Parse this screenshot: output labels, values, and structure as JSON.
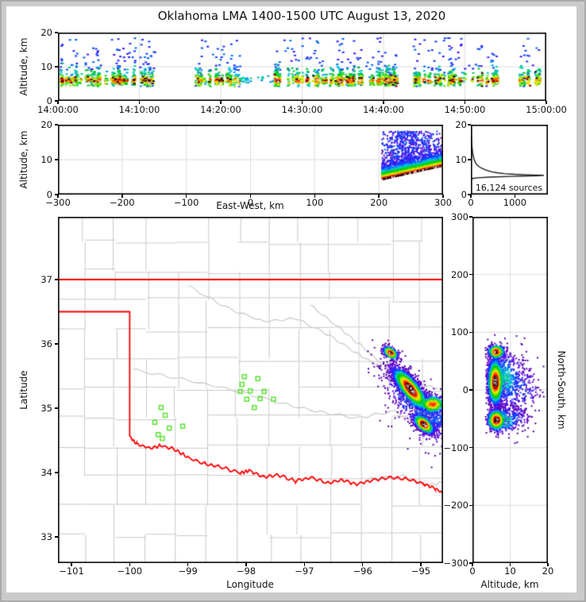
{
  "title": "Oklahoma LMA 1400-1500 UTC August 13, 2020",
  "colors": {
    "state_border": "#ff0000",
    "county_line": "#c9c9c9",
    "river_line": "#c3c3c3",
    "station_marker": "#5ae332",
    "gridline": "#dcdcdc",
    "histogram_line": "#1a1a1a",
    "spine": "#000000"
  },
  "panels": {
    "time_height": {
      "ylabel": "Altitude, km",
      "yticks": [
        0,
        10,
        20
      ],
      "xtick_seconds": [
        0,
        600,
        1200,
        1800,
        2400,
        3000,
        3600
      ],
      "xtick_labels": [
        "14:00:00",
        "14:10:00",
        "14:20:00",
        "14:30:00",
        "14:40:00",
        "14:50:00",
        "15:00:00"
      ]
    },
    "ew_height": {
      "xlabel": "East-West, km",
      "ylabel": "Altitude, km",
      "yticks": [
        0,
        10,
        20
      ],
      "xticks": [
        -300,
        -200,
        -100,
        0,
        100,
        200,
        300
      ],
      "xtick_labels": [
        "−300",
        "−200",
        "−100",
        "0",
        "100",
        "200",
        "300"
      ]
    },
    "histogram": {
      "annotation": "16,124 sources",
      "xticks": [
        0,
        1000
      ],
      "xtick_labels": [
        "0",
        "1000"
      ],
      "yticks": [
        0,
        10,
        20
      ],
      "xmax": 1750
    },
    "map": {
      "xlabel": "Longitude",
      "ylabel": "Latitude",
      "lon_ticks": [
        -101,
        -100,
        -99,
        -98,
        -97,
        -96,
        -95
      ],
      "lon_tick_labels": [
        "−101",
        "−100",
        "−99",
        "−98",
        "−97",
        "−96",
        "−95"
      ],
      "lat_ticks": [
        37,
        36,
        35,
        34,
        33
      ],
      "lat_tick_labels": [
        "37",
        "36",
        "35",
        "34",
        "33"
      ],
      "lon_range": [
        -101.232,
        -94.618
      ],
      "lat_range": [
        32.593,
        37.975
      ],
      "stations": [
        [
          -99.46,
          35.01
        ],
        [
          -99.39,
          34.89
        ],
        [
          -99.57,
          34.78
        ],
        [
          -99.32,
          34.69
        ],
        [
          -99.09,
          34.72
        ],
        [
          -99.51,
          34.59
        ],
        [
          -99.44,
          34.53
        ],
        [
          -98.03,
          35.49
        ],
        [
          -97.8,
          35.46
        ],
        [
          -98.07,
          35.37
        ],
        [
          -98.1,
          35.26
        ],
        [
          -97.93,
          35.27
        ],
        [
          -97.69,
          35.26
        ],
        [
          -97.99,
          35.14
        ],
        [
          -97.76,
          35.15
        ],
        [
          -97.53,
          35.14
        ],
        [
          -97.86,
          35.01
        ]
      ],
      "borders": {
        "kansas_lat": 37.0,
        "panhandle_lat": 36.5,
        "panhandle_lon": -100.0,
        "panhandle_lat_bottom": 34.56,
        "red_river": [
          [
            -100.0,
            34.56
          ],
          [
            -99.88,
            34.44
          ],
          [
            -99.65,
            34.38
          ],
          [
            -99.45,
            34.42
          ],
          [
            -99.2,
            34.35
          ],
          [
            -99.0,
            34.23
          ],
          [
            -98.7,
            34.13
          ],
          [
            -98.45,
            34.09
          ],
          [
            -98.1,
            33.99
          ],
          [
            -97.95,
            34.03
          ],
          [
            -97.7,
            33.93
          ],
          [
            -97.45,
            33.96
          ],
          [
            -97.15,
            33.87
          ],
          [
            -96.9,
            33.92
          ],
          [
            -96.6,
            33.84
          ],
          [
            -96.35,
            33.88
          ],
          [
            -96.1,
            33.82
          ],
          [
            -95.85,
            33.88
          ],
          [
            -95.55,
            33.92
          ],
          [
            -95.25,
            33.9
          ],
          [
            -94.95,
            33.82
          ],
          [
            -94.75,
            33.75
          ],
          [
            -94.6,
            33.67
          ]
        ]
      },
      "rivers": [
        [
          [
            -99.0,
            36.9
          ],
          [
            -98.3,
            36.55
          ],
          [
            -97.7,
            36.35
          ],
          [
            -97.15,
            36.4
          ],
          [
            -96.6,
            36.15
          ],
          [
            -96.1,
            35.85
          ],
          [
            -95.7,
            35.65
          ]
        ],
        [
          [
            -99.95,
            35.6
          ],
          [
            -99.1,
            35.45
          ],
          [
            -98.3,
            35.3
          ],
          [
            -97.5,
            35.1
          ],
          [
            -96.8,
            34.95
          ],
          [
            -96.1,
            34.85
          ],
          [
            -95.45,
            34.95
          ],
          [
            -94.9,
            34.65
          ]
        ],
        [
          [
            -96.9,
            36.6
          ],
          [
            -96.4,
            36.25
          ],
          [
            -96.0,
            35.95
          ],
          [
            -95.55,
            35.6
          ],
          [
            -95.05,
            35.38
          ],
          [
            -94.7,
            35.3
          ]
        ],
        [
          [
            -95.9,
            33.9
          ],
          [
            -95.3,
            33.95
          ],
          [
            -94.9,
            33.8
          ],
          [
            -94.62,
            33.85
          ]
        ]
      ],
      "county_grid": {
        "lon_start": -101.3,
        "lon_step": 0.527,
        "lat_start": 32.58,
        "lat_step": 0.455,
        "cols": 14,
        "rows": 13
      }
    },
    "ns_height": {
      "xlabel": "Altitude, km",
      "ylabel_right": "North-South, km",
      "xticks": [
        0,
        10,
        20
      ],
      "yticks": [
        300,
        200,
        100,
        0,
        -100,
        -200,
        -300
      ],
      "ytick_labels": [
        "300",
        "200",
        "100",
        "0",
        "−100",
        "−200",
        "−300"
      ]
    }
  },
  "chart_data": [
    {
      "panel": "time_height",
      "type": "scatter-density",
      "x_axis": "UTC time 14:00:00-15:00:00 (seconds)",
      "y_axis": "Altitude 0-20 km",
      "band_center_km": 6.0,
      "band_sigma_km": 0.85,
      "max_alt_km": 18.5,
      "active_windows_sec": [
        [
          0,
          765,
          1.0
        ],
        [
          1020,
          1345,
          0.9
        ],
        [
          1345,
          1590,
          0.15
        ],
        [
          1590,
          2505,
          1.0
        ],
        [
          2630,
          3000,
          0.85
        ],
        [
          3030,
          3240,
          0.8
        ],
        [
          3390,
          3580,
          0.75
        ]
      ]
    },
    {
      "panel": "ew_height",
      "type": "scatter-density",
      "x_axis": "East-West -300..300 km",
      "y_axis": "Altitude 0-20 km",
      "triangle": {
        "x0": 205,
        "x1": 300,
        "alt0": 4.3,
        "alt1": 8.2,
        "top": 18.2,
        "decay": 2.1,
        "n_core": 2600,
        "n_diffuse": 750
      }
    },
    {
      "panel": "histogram",
      "type": "line",
      "total_sources": "16,124",
      "profile_alt_count": [
        [
          20,
          4
        ],
        [
          18,
          8
        ],
        [
          16,
          13
        ],
        [
          14,
          22
        ],
        [
          12,
          40
        ],
        [
          11,
          55
        ],
        [
          10,
          75
        ],
        [
          9,
          110
        ],
        [
          8.5,
          140
        ],
        [
          8,
          185
        ],
        [
          7.5,
          250
        ],
        [
          7,
          340
        ],
        [
          6.5,
          480
        ],
        [
          6.2,
          620
        ],
        [
          6,
          760
        ],
        [
          5.8,
          1000
        ],
        [
          5.6,
          1400
        ],
        [
          5.5,
          1660
        ],
        [
          5.4,
          1500
        ],
        [
          5.2,
          900
        ],
        [
          5,
          420
        ],
        [
          4.8,
          150
        ],
        [
          4.6,
          40
        ],
        [
          4.4,
          5
        ],
        [
          4.3,
          0
        ]
      ]
    },
    {
      "panel": "map",
      "type": "scatter-density",
      "clusters": [
        {
          "name": "north-small-cell",
          "lon": -95.52,
          "lat": 35.86,
          "ax": 0.85,
          "ay": -0.53,
          "smaj": 0.07,
          "smin": 0.04,
          "n": 320,
          "tmax": 0.95
        },
        {
          "name": "main-cell",
          "lon": -95.18,
          "lat": 35.3,
          "ax": 0.67,
          "ay": -0.74,
          "smaj": 0.21,
          "smin": 0.07,
          "n": 2600,
          "tmax": 1.0
        },
        {
          "name": "east-lobe",
          "lon": -94.8,
          "lat": 35.06,
          "ax": 1,
          "ay": 0,
          "smaj": 0.12,
          "smin": 0.07,
          "n": 420,
          "tmax": 0.85
        },
        {
          "name": "south-cell",
          "lon": -94.95,
          "lat": 34.75,
          "ax": 0.8,
          "ay": -0.6,
          "smaj": 0.1,
          "smin": 0.05,
          "n": 900,
          "tmax": 1.0
        },
        {
          "name": "diffuse-halo",
          "lon": -95.05,
          "lat": 35.05,
          "ax": 0.67,
          "ay": -0.74,
          "smaj": 0.45,
          "smin": 0.18,
          "n": 480,
          "tmax": 0.3
        },
        {
          "name": "east-fringe",
          "lon": -94.7,
          "lat": 34.85,
          "ax": 1,
          "ay": 0,
          "smaj": 0.18,
          "smin": 0.12,
          "n": 160,
          "tmax": 0.25
        }
      ]
    },
    {
      "panel": "ns_height",
      "type": "scatter-density",
      "clusters": [
        {
          "alt": 6.1,
          "ns": 14,
          "sa": 1.0,
          "sn": 20,
          "n": 1900,
          "tmax": 1.0
        },
        {
          "alt": 6.3,
          "ns": 66,
          "sa": 1.1,
          "sn": 6,
          "n": 360,
          "tmax": 0.95
        },
        {
          "alt": 6.4,
          "ns": -52,
          "sa": 1.2,
          "sn": 9,
          "n": 800,
          "tmax": 1.0
        },
        {
          "alt": 8.2,
          "ns": 20,
          "sa": 3.0,
          "sn": 26,
          "n": 550,
          "tmax": 0.38
        },
        {
          "alt": 8.4,
          "ns": -52,
          "sa": 2.6,
          "sn": 13,
          "n": 200,
          "tmax": 0.4
        },
        {
          "alt": 12.0,
          "ns": 2,
          "sa": 3.4,
          "sn": 26,
          "n": 230,
          "tmax": 0.24
        },
        {
          "alt": 11.0,
          "ns": -48,
          "sa": 2.5,
          "sn": 10,
          "n": 90,
          "tmax": 0.22
        }
      ]
    }
  ]
}
